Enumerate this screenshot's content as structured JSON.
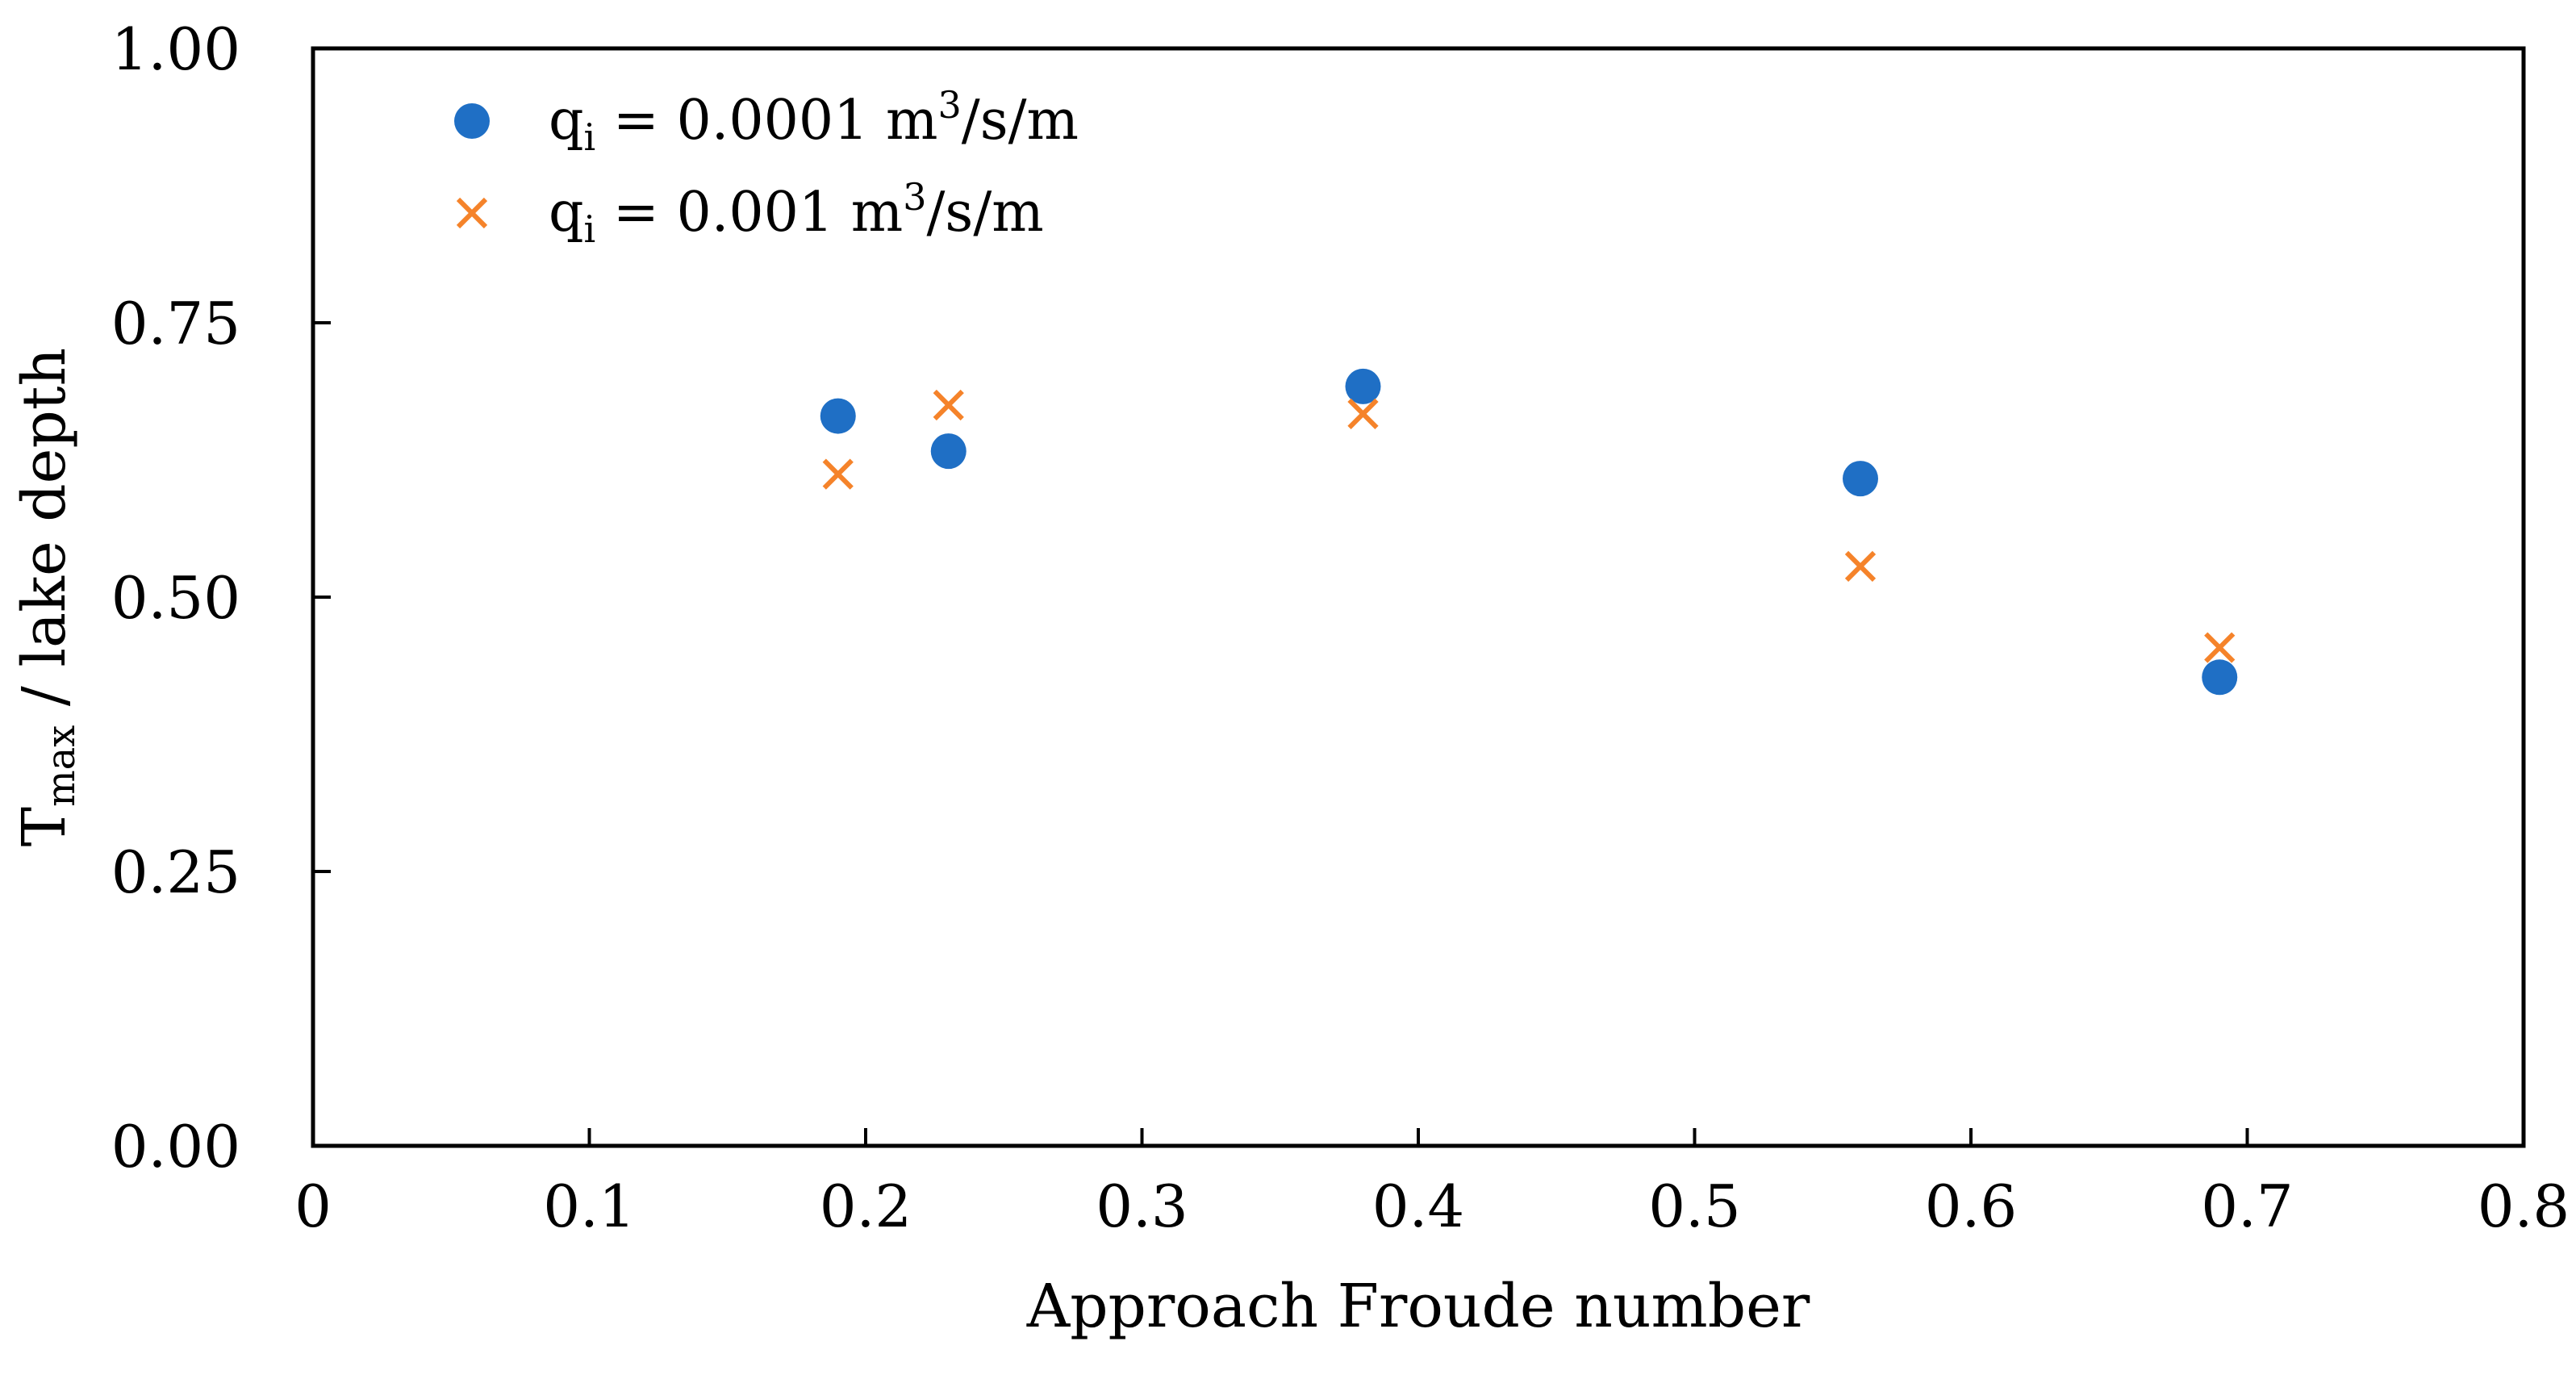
{
  "chart_data": {
    "type": "scatter",
    "xlabel": "Approach Froude number",
    "ylabel": {
      "main": "T",
      "sub": "max",
      "rest": " / lake depth"
    },
    "xlim": [
      0,
      0.8
    ],
    "ylim": [
      0,
      1.0
    ],
    "x_ticks": [
      0,
      0.1,
      0.2,
      0.3,
      0.4,
      0.5,
      0.6,
      0.7,
      0.8
    ],
    "x_tick_labels": [
      "0",
      "0.1",
      "0.2",
      "0.3",
      "0.4",
      "0.5",
      "0.6",
      "0.7",
      "0.8"
    ],
    "y_ticks": [
      0,
      0.25,
      0.5,
      0.75,
      1.0
    ],
    "y_tick_labels": [
      "0.00",
      "0.25",
      "0.50",
      "0.75",
      "1.00"
    ],
    "grid": false,
    "legend_position": "top-left",
    "series": [
      {
        "name": "q_i = 0.0001 m^3/s/m",
        "legend": {
          "q": "q",
          "sub": "i",
          "eq": " = 0.0001 m",
          "sup": "3",
          "unit": "/s/m"
        },
        "marker": "circle",
        "color": "#1f6fc5",
        "x": [
          0.19,
          0.23,
          0.38,
          0.56,
          0.69
        ],
        "y": [
          0.665,
          0.633,
          0.692,
          0.608,
          0.427
        ]
      },
      {
        "name": "q_i = 0.001 m^3/s/m",
        "legend": {
          "q": "q",
          "sub": "i",
          "eq": " = 0.001 m",
          "sup": "3",
          "unit": "/s/m"
        },
        "marker": "x",
        "color": "#f5832a",
        "x": [
          0.19,
          0.23,
          0.38,
          0.56,
          0.69
        ],
        "y": [
          0.612,
          0.675,
          0.667,
          0.528,
          0.454
        ]
      }
    ]
  }
}
